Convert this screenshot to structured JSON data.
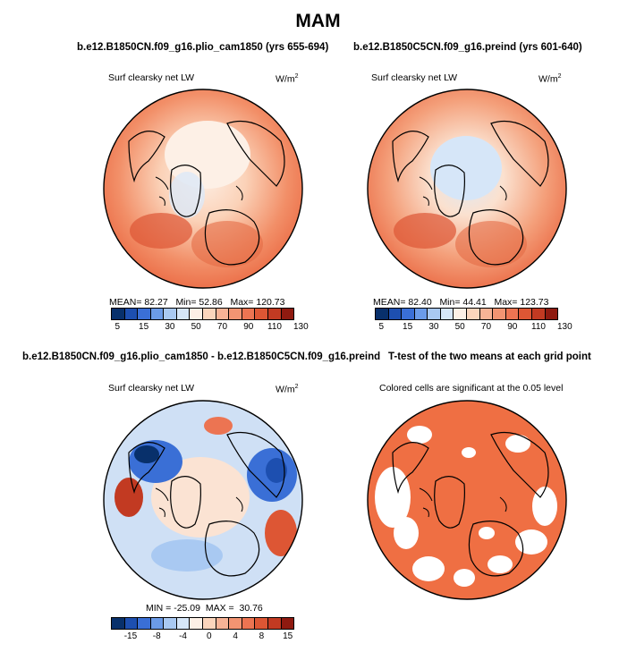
{
  "season": "MAM",
  "panels": {
    "plio": {
      "title": "b.e12.B1850CN.f09_g16.plio_cam1850 (yrs 655-694)",
      "variable": "Surf clearsky net LW",
      "units": "W/m",
      "units_sup": "2",
      "mean_label": "MEAN=",
      "mean": "82.27",
      "min_label": "Min=",
      "min": "52.86",
      "max_label": "Max=",
      "max": "120.73"
    },
    "preind": {
      "title": "b.e12.B1850C5CN.f09_g16.preind (yrs 601-640)",
      "variable": "Surf clearsky net LW",
      "units": "W/m",
      "units_sup": "2",
      "mean_label": "MEAN=",
      "mean": "82.40",
      "min_label": "Min=",
      "min": "44.41",
      "max_label": "Max=",
      "max": "123.73"
    },
    "diff": {
      "title": "b.e12.B1850CN.f09_g16.plio_cam1850 - b.e12.B1850C5CN.f09_g16.preind",
      "variable": "Surf clearsky net LW",
      "units": "W/m",
      "units_sup": "2",
      "min_label": "MIN =",
      "min": "-25.09",
      "max_label": "MAX =",
      "max": "30.76"
    },
    "ttest": {
      "title": "T-test of the two means at each grid point",
      "subtitle": "Colored cells are significant at the 0.05 level"
    }
  },
  "colorbar_abs": {
    "ticks": [
      "5",
      "15",
      "30",
      "50",
      "70",
      "90",
      "110",
      "130"
    ],
    "colors": [
      "#08306b",
      "#1d4fb0",
      "#3a6fd6",
      "#6b9be8",
      "#a9c9f2",
      "#d6e6f8",
      "#fdf0e6",
      "#fbd5bc",
      "#f7b396",
      "#f29472",
      "#ec7452",
      "#dd5634",
      "#c23a22",
      "#8f1a10"
    ]
  },
  "colorbar_diff": {
    "ticks": [
      "-15",
      "-8",
      "-4",
      "0",
      "4",
      "8",
      "15"
    ],
    "colors": [
      "#08306b",
      "#1d4fb0",
      "#3a6fd6",
      "#6b9be8",
      "#a9c9f2",
      "#d6e6f8",
      "#fdf0e6",
      "#fbd5bc",
      "#f7b396",
      "#f29472",
      "#ec7452",
      "#dd5634",
      "#c23a22",
      "#8f1a10"
    ]
  },
  "colors": {
    "ttest_fill": "#ef6f43",
    "base_warm": "#ee7a52",
    "land_outline": "#000000"
  }
}
